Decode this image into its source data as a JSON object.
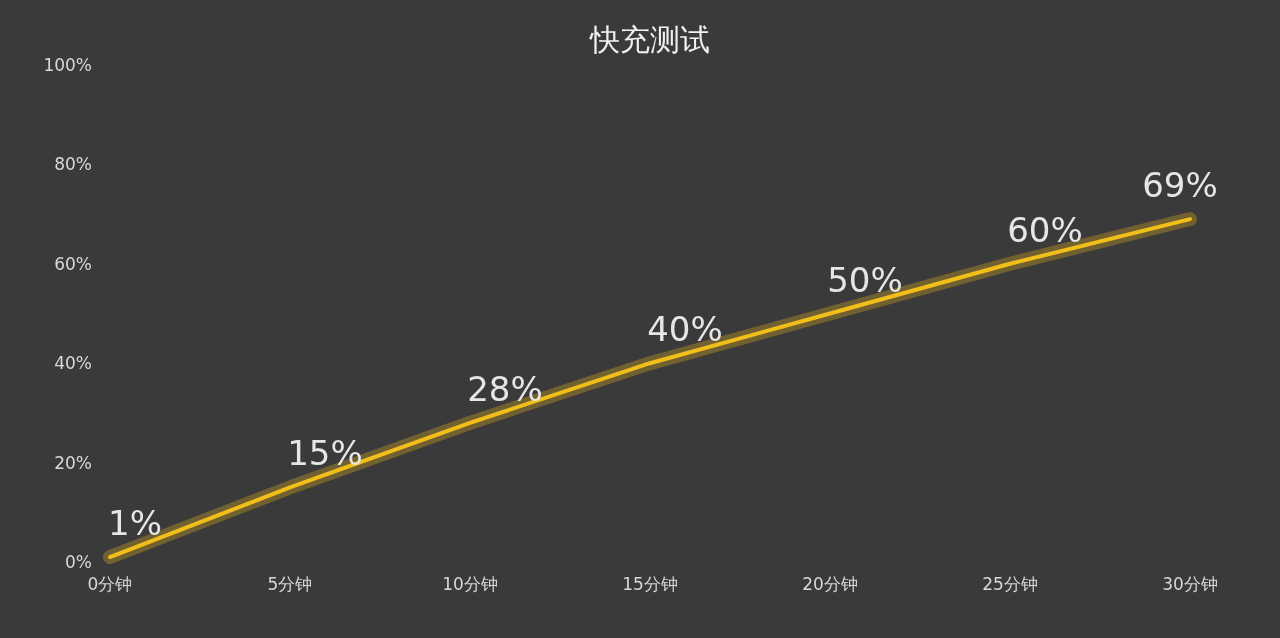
{
  "chart_data": {
    "type": "line",
    "title": "快充测试",
    "categories": [
      "0分钟",
      "5分钟",
      "10分钟",
      "15分钟",
      "20分钟",
      "25分钟",
      "30分钟"
    ],
    "series": [
      {
        "color": "#f2be1a",
        "values": [
          1,
          15,
          28,
          40,
          50,
          60,
          69
        ],
        "value_labels": [
          "1%",
          "15%",
          "28%",
          "40%",
          "50%",
          "60%",
          "69%"
        ]
      }
    ],
    "ylim": [
      0,
      100
    ],
    "yticks": [
      {
        "value": 0,
        "label": "0%"
      },
      {
        "value": 20,
        "label": "20%"
      },
      {
        "value": 40,
        "label": "40%"
      },
      {
        "value": 60,
        "label": "60%"
      },
      {
        "value": 80,
        "label": "80%"
      },
      {
        "value": 100,
        "label": "100%"
      }
    ],
    "grid": false,
    "marker": "none",
    "line_style": "solid"
  }
}
